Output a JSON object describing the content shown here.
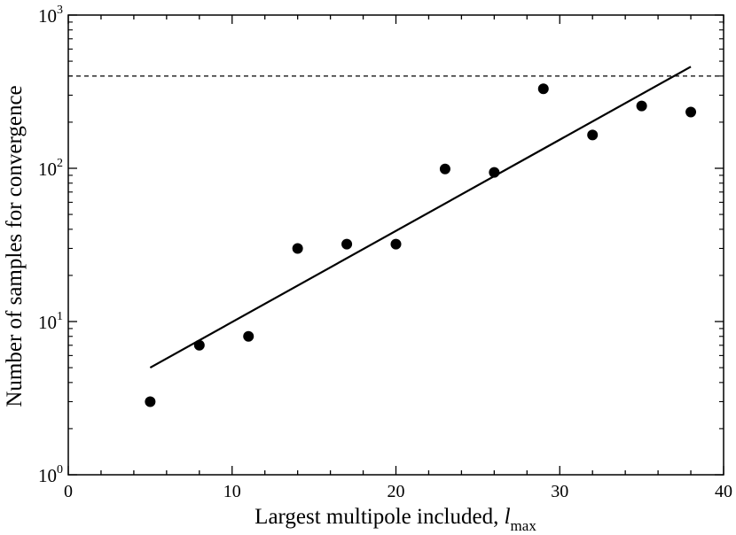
{
  "chart_data": {
    "type": "scatter",
    "title": "",
    "xlabel": "Largest multipole included, ",
    "xlabel_var": "l",
    "xlabel_sub": "max",
    "ylabel": "Number of samples for convergence",
    "xlim": [
      0,
      40
    ],
    "ylim": [
      1,
      1000
    ],
    "yscale": "log",
    "grid": false,
    "x_ticks": [
      0,
      10,
      20,
      30,
      40
    ],
    "x_tick_labels": [
      "0",
      "10",
      "20",
      "30",
      "40"
    ],
    "y_ticks": [
      1,
      10,
      100,
      1000
    ],
    "y_tick_base": "10",
    "y_tick_exponents": [
      "0",
      "1",
      "2",
      "3"
    ],
    "series": [
      {
        "type": "scatter",
        "x": [
          5,
          8,
          11,
          14,
          17,
          20,
          23,
          26,
          29,
          32,
          35,
          38
        ],
        "y": [
          3,
          7,
          8,
          30,
          32,
          32,
          99,
          94,
          330,
          165,
          255,
          233
        ]
      },
      {
        "type": "line",
        "x": [
          5,
          38
        ],
        "y": [
          5,
          460
        ]
      }
    ],
    "reference_lines": [
      {
        "orientation": "horizontal",
        "y": 400,
        "style": "dashed"
      }
    ]
  }
}
